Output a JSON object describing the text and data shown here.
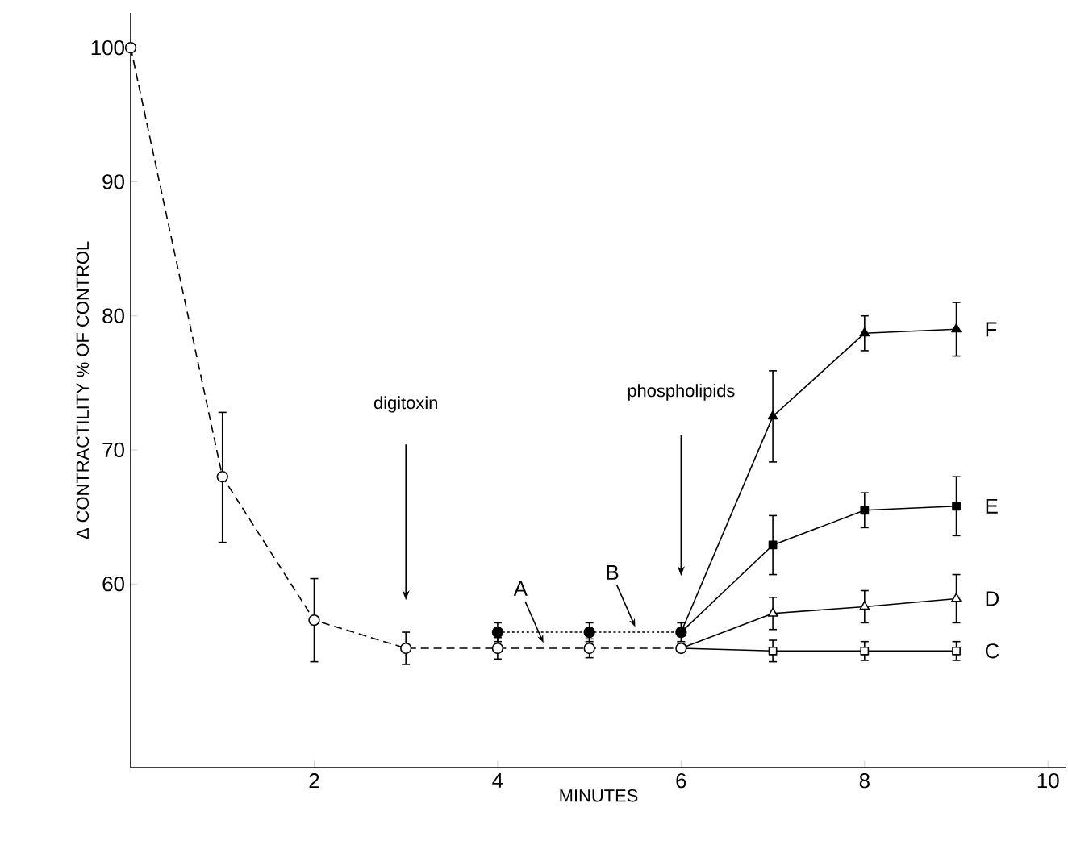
{
  "chart_data": {
    "type": "line",
    "xlabel": "MINUTES",
    "ylabel": "Δ CONTRACTILITY  % OF CONTROL",
    "xlim": [
      0,
      10.2
    ],
    "ylim": [
      46.3,
      102.6
    ],
    "xticks": [
      2,
      4,
      6,
      8,
      10
    ],
    "yticks": [
      60,
      70,
      80,
      90,
      100
    ],
    "grid": false,
    "series": [
      {
        "name": "C",
        "color": "#000000",
        "marker": "square",
        "line_style": "solid",
        "x": [
          6,
          7,
          8,
          9
        ],
        "values": [
          55.2,
          55.0,
          55.0,
          55.0
        ],
        "errors": [
          null,
          0.8,
          0.7,
          0.7
        ]
      },
      {
        "name": "D",
        "color": "#000000",
        "marker": "triangle",
        "line_style": "solid",
        "x": [
          6,
          7,
          8,
          9
        ],
        "values": [
          55.2,
          57.8,
          58.3,
          58.9
        ],
        "errors": [
          null,
          1.2,
          1.2,
          1.8
        ]
      },
      {
        "name": "E",
        "color": "#000000",
        "marker": "square",
        "line_style": "solid",
        "x": [
          6,
          7,
          8,
          9
        ],
        "values": [
          56.4,
          62.9,
          65.5,
          65.8
        ],
        "errors": [
          null,
          2.2,
          1.3,
          2.2
        ]
      },
      {
        "name": "F",
        "color": "#000000",
        "marker": "triangle",
        "line_style": "solid",
        "x": [
          6,
          7,
          8,
          9
        ],
        "values": [
          56.4,
          72.5,
          78.7,
          79.0
        ],
        "errors": [
          null,
          3.4,
          1.3,
          2.0
        ]
      },
      {
        "color": "#000000",
        "marker": "circle",
        "line_style": "dashed",
        "x": [
          0,
          1,
          2,
          3,
          4,
          5,
          6
        ],
        "values": [
          100,
          68.0,
          57.3,
          55.2,
          55.2,
          55.2,
          55.2
        ],
        "errors": [
          null,
          [
            63.1,
            72.8
          ],
          [
            54.2,
            60.4
          ],
          1.2,
          0.8,
          0.7,
          null
        ]
      },
      {
        "color": "#000000",
        "marker": "circle",
        "line_style": "dotted",
        "x": [
          4,
          5,
          6
        ],
        "values": [
          56.4,
          56.4,
          56.4
        ],
        "errors": [
          0.7,
          0.7,
          0.7
        ]
      }
    ],
    "annotations": [
      "digitoxin",
      "phospholipids",
      {
        "text": "A",
        "x": 4.5,
        "y": 55.2
      },
      {
        "text": "B",
        "x": 5.5,
        "y": 56.4
      }
    ]
  }
}
